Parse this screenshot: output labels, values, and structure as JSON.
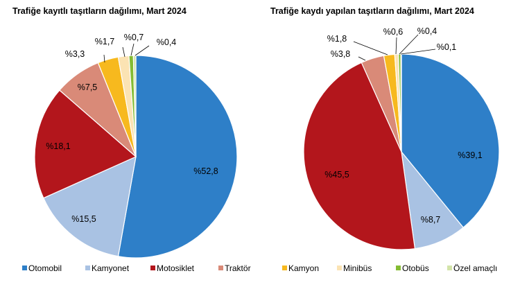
{
  "legend": [
    {
      "name": "Otomobil",
      "color": "#2e7fc8"
    },
    {
      "name": "Kamyonet",
      "color": "#a9c2e3"
    },
    {
      "name": "Motosiklet",
      "color": "#b3161c"
    },
    {
      "name": "Traktör",
      "color": "#d98a78"
    },
    {
      "name": "Kamyon",
      "color": "#f7b91e"
    },
    {
      "name": "Minibüs",
      "color": "#fbe3b3"
    },
    {
      "name": "Otobüs",
      "color": "#84bc32"
    },
    {
      "name": "Özel amaçlı",
      "color": "#d3e4a9"
    }
  ],
  "chart_data": [
    {
      "type": "pie",
      "title": "Trafiğe kayıtlı taşıtların dağılımı, Mart 2024",
      "categories": [
        "Otomobil",
        "Kamyonet",
        "Motosiklet",
        "Traktör",
        "Kamyon",
        "Minibüs",
        "Otobüs",
        "Özel amaçlı"
      ],
      "values": [
        52.8,
        15.5,
        18.1,
        7.5,
        3.3,
        1.7,
        0.7,
        0.4
      ],
      "labels": [
        "%52,8",
        "%15,5",
        "%18,1",
        "%7,5",
        "%3,3",
        "%1,7",
        "%0,7",
        "%0,4"
      ],
      "legend": "bottom"
    },
    {
      "type": "pie",
      "title": "Trafiğe kaydı yapılan taşıtların dağılımı, Mart 2024",
      "categories": [
        "Otomobil",
        "Kamyonet",
        "Motosiklet",
        "Traktör",
        "Kamyon",
        "Minibüs",
        "Otobüs",
        "Özel amaçlı"
      ],
      "values": [
        39.1,
        8.7,
        45.5,
        3.8,
        1.8,
        0.6,
        0.4,
        0.1
      ],
      "labels": [
        "%39,1",
        "%8,7",
        "%45,5",
        "%3,8",
        "%1,8",
        "%0,6",
        "%0,4",
        "%0,1"
      ],
      "legend": "bottom"
    }
  ]
}
